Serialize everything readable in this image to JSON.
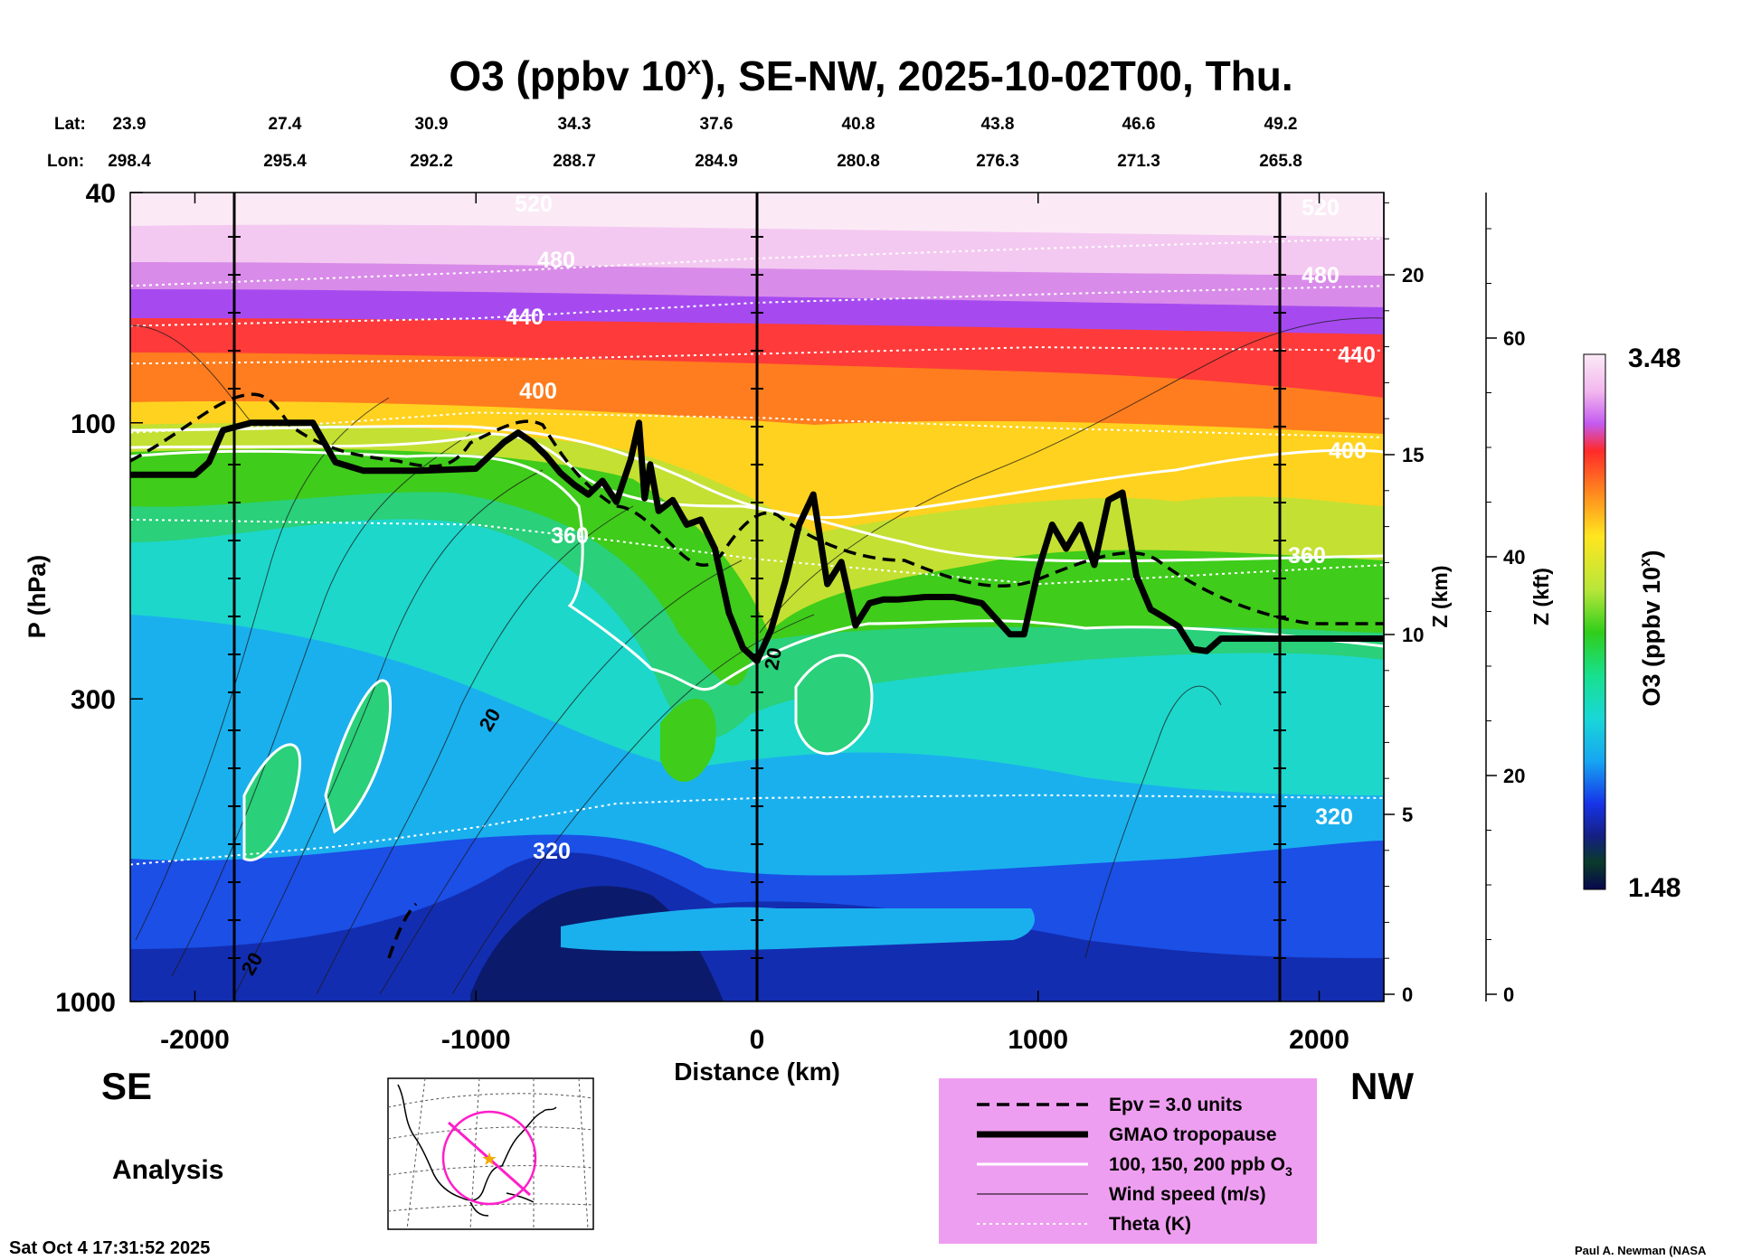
{
  "chart_data": {
    "type": "heatmap",
    "title_main": "O3 (ppbv 10",
    "title_sup": "x",
    "title_rest": "), SE-NW, 2025-10-02T00, Thu.",
    "lat_label": "Lat:",
    "lon_label": "Lon:",
    "lat_values": [
      "23.9",
      "27.4",
      "30.9",
      "34.3",
      "37.6",
      "40.8",
      "43.8",
      "46.6",
      "49.2"
    ],
    "lon_values": [
      "298.4",
      "295.4",
      "292.2",
      "288.7",
      "284.9",
      "280.8",
      "276.3",
      "271.3",
      "265.8"
    ],
    "xlabel": "Distance (km)",
    "x_ticks": [
      "-2000",
      "-1000",
      "0",
      "1000",
      "2000"
    ],
    "x_range_km": [
      -2230,
      2230
    ],
    "ylabel": "P (hPa)",
    "y_ticks": [
      "40",
      "100",
      "300",
      "1000"
    ],
    "y_range_hPa": [
      1000,
      40
    ],
    "z_km_label": "Z (km)",
    "z_km_ticks": [
      "0",
      "5",
      "10",
      "15",
      "20"
    ],
    "z_kft_label": "Z (kft)",
    "z_kft_ticks": [
      "0",
      "20",
      "40",
      "60"
    ],
    "colorbar_label_main": "O3 (ppbv 10",
    "colorbar_label_sup": "x",
    "colorbar_label_rest": ")",
    "colorbar_max": "3.48",
    "colorbar_min": "1.48",
    "direction_left": "SE",
    "direction_right": "NW",
    "analysis_label": "Analysis",
    "timestamp": "Sat Oct  4 17:31:52 2025",
    "credit": "Paul A. Newman (NASA",
    "theta_contours": [
      {
        "value": "520",
        "points": [
          [
            -2230,
            58
          ],
          [
            -1000,
            55
          ],
          [
            0,
            52
          ],
          [
            1000,
            50
          ],
          [
            2230,
            48
          ]
        ]
      },
      {
        "value": "480",
        "points": [
          [
            -2230,
            68
          ],
          [
            -1000,
            66
          ],
          [
            0,
            62
          ],
          [
            1000,
            60
          ],
          [
            2230,
            58
          ]
        ]
      },
      {
        "value": "440",
        "points": [
          [
            -2230,
            79
          ],
          [
            -1000,
            78
          ],
          [
            0,
            76
          ],
          [
            1000,
            74
          ],
          [
            2230,
            75
          ]
        ]
      },
      {
        "value": "400",
        "points": [
          [
            -2230,
            104
          ],
          [
            -1500,
            100
          ],
          [
            -1000,
            96
          ],
          [
            0,
            98
          ],
          [
            1000,
            102
          ],
          [
            2230,
            106
          ]
        ]
      },
      {
        "value": "360",
        "points": [
          [
            -2230,
            147
          ],
          [
            -1000,
            150
          ],
          [
            -500,
            160
          ],
          [
            0,
            172
          ],
          [
            1000,
            190
          ],
          [
            2230,
            176
          ]
        ]
      },
      {
        "value": "320",
        "points": [
          [
            -2230,
            580
          ],
          [
            -1500,
            540
          ],
          [
            -1000,
            500
          ],
          [
            -500,
            455
          ],
          [
            0,
            445
          ],
          [
            1000,
            440
          ],
          [
            2230,
            445
          ]
        ]
      }
    ],
    "theta_label_values": [
      "520",
      "480",
      "440",
      "400",
      "360",
      "320",
      "520",
      "480",
      "440",
      "400",
      "360",
      "320"
    ],
    "wind_label_values": [
      "20",
      "20",
      "20"
    ],
    "legend": [
      {
        "style": "dashed",
        "label": "Epv = 3.0 units"
      },
      {
        "style": "thick",
        "label": "GMAO tropopause"
      },
      {
        "style": "white",
        "label": "100, 150, 200 ppb O",
        "label_sub": "3"
      },
      {
        "style": "thin",
        "label": "Wind speed (m/s)"
      },
      {
        "style": "dotted",
        "label": "Theta (K)"
      }
    ],
    "tropopause_hPa": {
      "x": [
        -2230,
        -2150,
        -2000,
        -1950,
        -1900,
        -1800,
        -1700,
        -1580,
        -1500,
        -1400,
        -1200,
        -1000,
        -900,
        -850,
        -800,
        -750,
        -700,
        -650,
        -600,
        -550,
        -500,
        -450,
        -420,
        -400,
        -380,
        -350,
        -300,
        -250,
        -200,
        -150,
        -100,
        -50,
        0,
        50,
        100,
        150,
        200,
        250,
        300,
        350,
        400,
        450,
        500,
        600,
        700,
        800,
        850,
        900,
        950,
        1000,
        1050,
        1100,
        1150,
        1200,
        1250,
        1300,
        1350,
        1400,
        1450,
        1500,
        1550,
        1600,
        1650,
        1700,
        1800,
        1900,
        2000,
        2100,
        2230
      ],
      "p": [
        123,
        123,
        123,
        117,
        103,
        100,
        100,
        100,
        117,
        121,
        121,
        120,
        108,
        104,
        108,
        114,
        122,
        128,
        133,
        126,
        137,
        116,
        100,
        135,
        118,
        142,
        136,
        150,
        147,
        165,
        213,
        245,
        258,
        228,
        188,
        150,
        133,
        190,
        174,
        224,
        205,
        202,
        202,
        200,
        200,
        205,
        218,
        232,
        232,
        180,
        150,
        165,
        150,
        176,
        136,
        132,
        184,
        210,
        217,
        225,
        246,
        248,
        236,
        236,
        236,
        236,
        236,
        236,
        236
      ]
    },
    "o3_isolines_ppb": [
      "100",
      "150",
      "200"
    ]
  }
}
